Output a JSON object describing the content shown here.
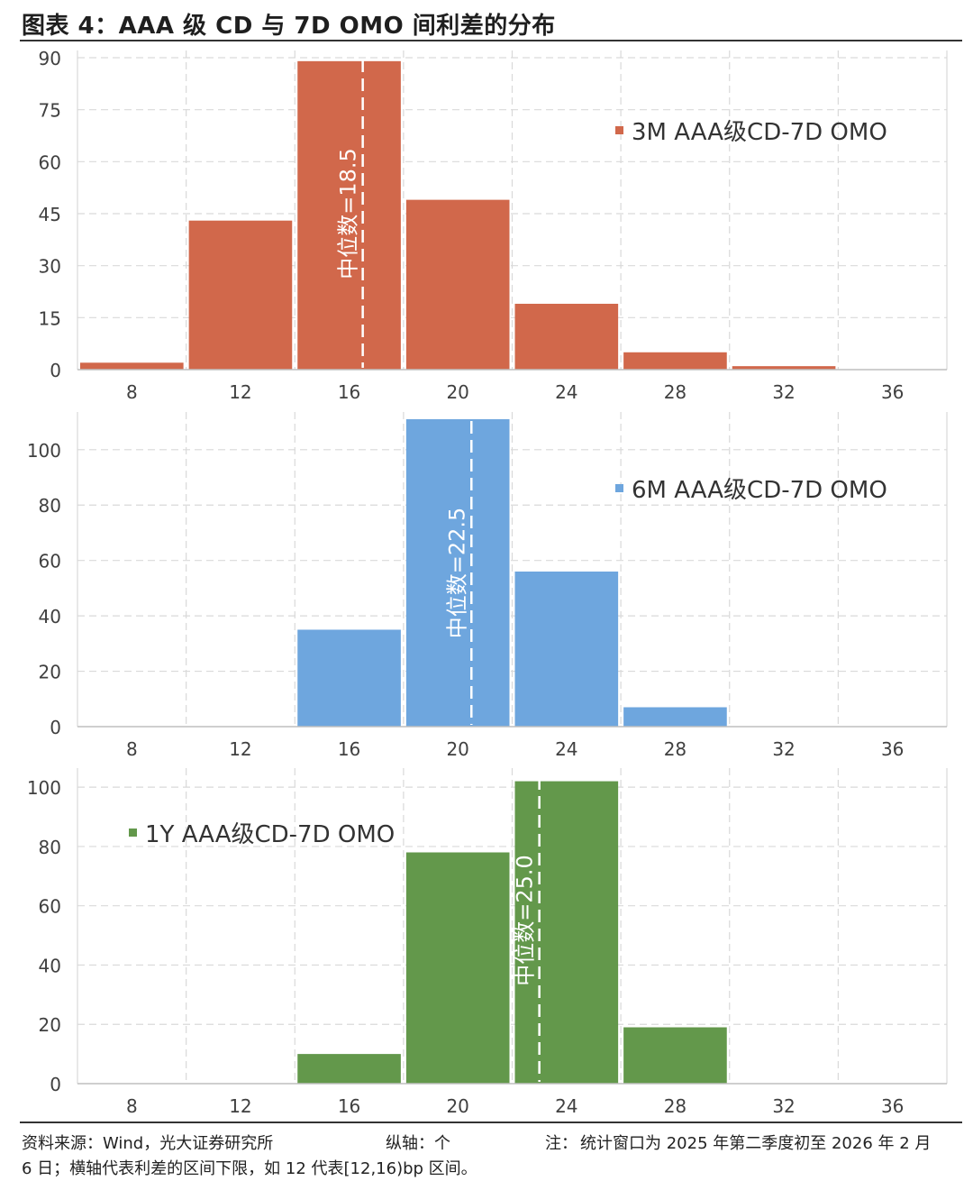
{
  "title": "图表 4：AAA 级 CD 与 7D OMO 间利差的分布",
  "footer": {
    "source": "资料来源：Wind，光大证券研究所",
    "yaxis_note": "纵轴：个",
    "note_label": "注：",
    "note_text": "统计窗口为 2025 年第二季度初至 2026 年 2 月",
    "note_cont": "6 日；横轴代表利差的区间下限，如 12 代表[12,16)bp 区间。"
  },
  "colors": {
    "series_3m": "#d1684b",
    "series_6m": "#6ea6de",
    "series_1y": "#63984b",
    "grid": "#d9d9d9",
    "axis": "#bfbfbf",
    "text": "#404040",
    "median_line": "#ffffff"
  },
  "chart_data": [
    {
      "type": "bar",
      "categories": [
        "8",
        "12",
        "16",
        "20",
        "24",
        "28",
        "32",
        "36"
      ],
      "series": [
        {
          "name": "3M AAA级CD-7D OMO",
          "values": [
            2,
            43,
            89,
            49,
            19,
            5,
            1,
            0
          ]
        }
      ],
      "ylim": [
        0,
        90
      ],
      "yticks": [
        0,
        15,
        30,
        45,
        60,
        75,
        90
      ],
      "legend": "3M AAA级CD-7D OMO",
      "legend_position": "top-right",
      "median_value": 18.5,
      "median_label": "中位数=18.5",
      "color": "#d1684b"
    },
    {
      "type": "bar",
      "categories": [
        "8",
        "12",
        "16",
        "20",
        "24",
        "28",
        "32",
        "36"
      ],
      "series": [
        {
          "name": "6M AAA级CD-7D OMO",
          "values": [
            0,
            0,
            35,
            111,
            56,
            7,
            0,
            0
          ]
        }
      ],
      "ylim": [
        0,
        111
      ],
      "yticks": [
        0,
        20,
        40,
        60,
        80,
        100
      ],
      "legend": "6M AAA级CD-7D OMO",
      "legend_position": "top-right",
      "median_value": 22.5,
      "median_label": "中位数=22.5",
      "color": "#6ea6de"
    },
    {
      "type": "bar",
      "categories": [
        "8",
        "12",
        "16",
        "20",
        "24",
        "28",
        "32",
        "36"
      ],
      "series": [
        {
          "name": "1Y AAA级CD-7D OMO",
          "values": [
            0,
            0,
            10,
            78,
            102,
            19,
            0,
            0
          ]
        }
      ],
      "ylim": [
        0,
        104
      ],
      "yticks": [
        0,
        20,
        40,
        60,
        80,
        100
      ],
      "legend": "1Y AAA级CD-7D OMO",
      "legend_position": "top-left",
      "median_value": 25.0,
      "median_label": "中位数=25.0",
      "color": "#63984b"
    }
  ]
}
